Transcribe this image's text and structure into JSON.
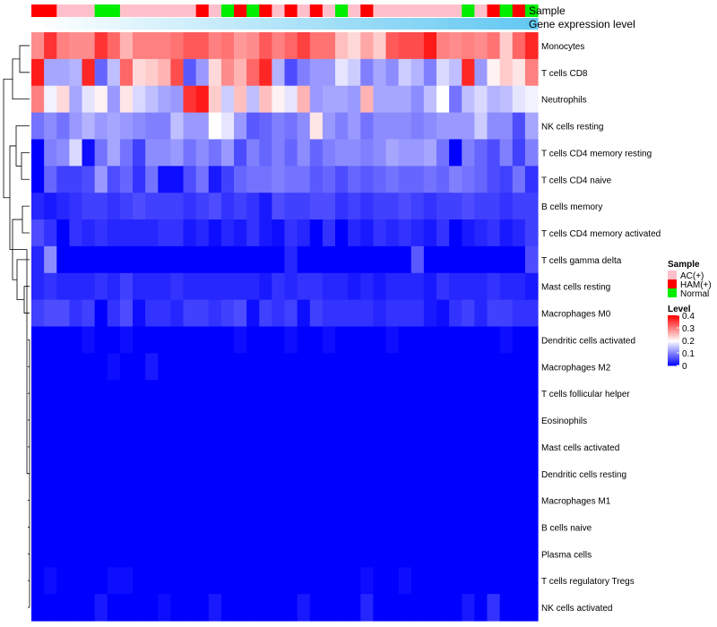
{
  "chart_data": {
    "type": "heatmap",
    "title": "",
    "annotation_rows": [
      "Sample",
      "Gene expression level"
    ],
    "rows": [
      "Monocytes",
      "T cells CD8",
      "Neutrophils",
      "NK cells resting",
      "T cells CD4 memory resting",
      "T cells CD4 naive",
      "B cells memory",
      "T cells CD4 memory activated",
      "T cells gamma delta",
      "Mast cells resting",
      "Macrophages M0",
      "Dendritic cells activated",
      "Macrophages M2",
      "T cells follicular helper",
      "Eosinophils",
      "Mast cells activated",
      "Dendritic cells resting",
      "Macrophages M1",
      "B cells naive",
      "Plasma cells",
      "T cells regulatory  Tregs",
      "NK cells activated"
    ],
    "sample_groups": [
      "HAM(+)",
      "HAM(+)",
      "AC(+)",
      "AC(+)",
      "AC(+)",
      "Normal",
      "Normal",
      "AC(+)",
      "AC(+)",
      "AC(+)",
      "AC(+)",
      "AC(+)",
      "AC(+)",
      "HAM(+)",
      "AC(+)",
      "Normal",
      "HAM(+)",
      "Normal",
      "HAM(+)",
      "AC(+)",
      "HAM(+)",
      "AC(+)",
      "HAM(+)",
      "AC(+)",
      "Normal",
      "AC(+)",
      "HAM(+)",
      "AC(+)",
      "AC(+)",
      "AC(+)",
      "AC(+)",
      "AC(+)",
      "AC(+)",
      "AC(+)",
      "Normal",
      "AC(+)",
      "HAM(+)",
      "Normal",
      "HAM(+)",
      "Normal"
    ],
    "gene_expression_level": [
      0.0,
      0.03,
      0.05,
      0.08,
      0.1,
      0.13,
      0.15,
      0.18,
      0.21,
      0.23,
      0.26,
      0.28,
      0.31,
      0.33,
      0.36,
      0.38,
      0.41,
      0.44,
      0.46,
      0.49,
      0.51,
      0.54,
      0.56,
      0.59,
      0.62,
      0.64,
      0.67,
      0.69,
      0.72,
      0.74,
      0.77,
      0.79,
      0.82,
      0.85,
      0.87,
      0.9,
      0.92,
      0.95,
      0.97,
      1.0
    ],
    "values": [
      [
        0.29,
        0.36,
        0.3,
        0.29,
        0.29,
        0.36,
        0.32,
        0.26,
        0.3,
        0.3,
        0.3,
        0.31,
        0.33,
        0.33,
        0.3,
        0.31,
        0.28,
        0.29,
        0.33,
        0.3,
        0.32,
        0.35,
        0.31,
        0.31,
        0.25,
        0.23,
        0.27,
        0.24,
        0.33,
        0.34,
        0.34,
        0.38,
        0.3,
        0.29,
        0.3,
        0.29,
        0.31,
        0.24,
        0.32,
        0.37
      ],
      [
        0.38,
        0.13,
        0.13,
        0.14,
        0.37,
        0.08,
        0.15,
        0.32,
        0.23,
        0.24,
        0.26,
        0.34,
        0.07,
        0.12,
        0.23,
        0.29,
        0.26,
        0.32,
        0.37,
        0.14,
        0.06,
        0.1,
        0.12,
        0.12,
        0.18,
        0.16,
        0.1,
        0.13,
        0.11,
        0.16,
        0.14,
        0.1,
        0.17,
        0.15,
        0.37,
        0.12,
        0.21,
        0.24,
        0.22,
        0.3
      ],
      [
        0.3,
        0.19,
        0.23,
        0.13,
        0.18,
        0.21,
        0.12,
        0.22,
        0.17,
        0.15,
        0.13,
        0.12,
        0.36,
        0.38,
        0.24,
        0.16,
        0.25,
        0.15,
        0.25,
        0.21,
        0.18,
        0.26,
        0.12,
        0.13,
        0.13,
        0.12,
        0.26,
        0.13,
        0.13,
        0.13,
        0.11,
        0.15,
        0.2,
        0.09,
        0.15,
        0.17,
        0.14,
        0.15,
        0.18,
        0.19
      ],
      [
        0.09,
        0.11,
        0.09,
        0.12,
        0.14,
        0.12,
        0.13,
        0.12,
        0.11,
        0.1,
        0.1,
        0.15,
        0.12,
        0.12,
        0.2,
        0.18,
        0.12,
        0.07,
        0.08,
        0.1,
        0.09,
        0.11,
        0.22,
        0.12,
        0.1,
        0.12,
        0.09,
        0.11,
        0.11,
        0.11,
        0.1,
        0.11,
        0.12,
        0.12,
        0.12,
        0.16,
        0.11,
        0.11,
        0.06,
        0.13
      ],
      [
        0.0,
        0.1,
        0.11,
        0.17,
        0.01,
        0.09,
        0.13,
        0.09,
        0.05,
        0.11,
        0.11,
        0.12,
        0.09,
        0.11,
        0.09,
        0.12,
        0.06,
        0.1,
        0.08,
        0.1,
        0.08,
        0.11,
        0.08,
        0.1,
        0.11,
        0.11,
        0.1,
        0.11,
        0.13,
        0.12,
        0.12,
        0.13,
        0.09,
        0.0,
        0.1,
        0.08,
        0.06,
        0.1,
        0.05,
        0.1
      ],
      [
        0.0,
        0.08,
        0.05,
        0.05,
        0.06,
        0.12,
        0.06,
        0.08,
        0.04,
        0.09,
        0.01,
        0.01,
        0.06,
        0.09,
        0.02,
        0.05,
        0.08,
        0.09,
        0.09,
        0.1,
        0.09,
        0.09,
        0.07,
        0.08,
        0.06,
        0.08,
        0.07,
        0.08,
        0.09,
        0.08,
        0.08,
        0.09,
        0.08,
        0.1,
        0.09,
        0.08,
        0.06,
        0.05,
        0.09,
        0.04
      ],
      [
        0.03,
        0.02,
        0.03,
        0.04,
        0.05,
        0.05,
        0.04,
        0.05,
        0.06,
        0.05,
        0.05,
        0.05,
        0.04,
        0.05,
        0.06,
        0.04,
        0.05,
        0.04,
        0.02,
        0.06,
        0.05,
        0.05,
        0.06,
        0.06,
        0.04,
        0.05,
        0.04,
        0.05,
        0.05,
        0.06,
        0.05,
        0.04,
        0.05,
        0.05,
        0.06,
        0.05,
        0.05,
        0.04,
        0.05,
        0.05
      ],
      [
        0.06,
        0.04,
        0.0,
        0.04,
        0.03,
        0.04,
        0.03,
        0.03,
        0.03,
        0.03,
        0.04,
        0.04,
        0.02,
        0.03,
        0.01,
        0.03,
        0.02,
        0.04,
        0.02,
        0.01,
        0.04,
        0.03,
        0.0,
        0.04,
        0.0,
        0.03,
        0.02,
        0.04,
        0.03,
        0.04,
        0.03,
        0.02,
        0.04,
        0.0,
        0.02,
        0.03,
        0.04,
        0.02,
        0.03,
        0.05
      ],
      [
        0.03,
        0.11,
        0.0,
        0.0,
        0.0,
        0.0,
        0.0,
        0.0,
        0.0,
        0.0,
        0.0,
        0.0,
        0.0,
        0.0,
        0.0,
        0.0,
        0.0,
        0.0,
        0.0,
        0.0,
        0.03,
        0.0,
        0.0,
        0.0,
        0.0,
        0.0,
        0.0,
        0.0,
        0.0,
        0.0,
        0.07,
        0.0,
        0.0,
        0.0,
        0.0,
        0.0,
        0.0,
        0.0,
        0.0,
        0.06
      ],
      [
        0.03,
        0.04,
        0.03,
        0.03,
        0.03,
        0.04,
        0.03,
        0.05,
        0.03,
        0.03,
        0.03,
        0.04,
        0.03,
        0.03,
        0.03,
        0.03,
        0.03,
        0.03,
        0.02,
        0.04,
        0.03,
        0.04,
        0.04,
        0.03,
        0.03,
        0.02,
        0.03,
        0.02,
        0.03,
        0.03,
        0.03,
        0.02,
        0.04,
        0.03,
        0.03,
        0.03,
        0.04,
        0.03,
        0.03,
        0.02
      ],
      [
        0.05,
        0.06,
        0.06,
        0.04,
        0.05,
        0.0,
        0.04,
        0.06,
        0.01,
        0.04,
        0.04,
        0.03,
        0.05,
        0.05,
        0.04,
        0.05,
        0.06,
        0.01,
        0.05,
        0.04,
        0.05,
        0.01,
        0.05,
        0.04,
        0.04,
        0.04,
        0.04,
        0.03,
        0.04,
        0.04,
        0.04,
        0.02,
        0.01,
        0.04,
        0.05,
        0.03,
        0.05,
        0.05,
        0.04,
        0.04
      ],
      [
        0.0,
        0.0,
        0.0,
        0.0,
        0.01,
        0.0,
        0.0,
        0.01,
        0.0,
        0.0,
        0.0,
        0.0,
        0.0,
        0.0,
        0.0,
        0.0,
        0.01,
        0.0,
        0.0,
        0.0,
        0.01,
        0.0,
        0.0,
        0.01,
        0.0,
        0.0,
        0.0,
        0.0,
        0.01,
        0.0,
        0.0,
        0.0,
        0.0,
        0.0,
        0.0,
        0.0,
        0.0,
        0.01,
        0.0,
        0.0
      ],
      [
        0.0,
        0.0,
        0.0,
        0.0,
        0.0,
        0.0,
        0.01,
        0.0,
        0.0,
        0.02,
        0.0,
        0.0,
        0.0,
        0.0,
        0.0,
        0.0,
        0.0,
        0.0,
        0.0,
        0.0,
        0.0,
        0.0,
        0.0,
        0.0,
        0.0,
        0.0,
        0.0,
        0.0,
        0.0,
        0.0,
        0.0,
        0.0,
        0.0,
        0.0,
        0.0,
        0.0,
        0.0,
        0.0,
        0.0,
        0.0
      ],
      [
        0.0,
        0.0,
        0.0,
        0.0,
        0.0,
        0.0,
        0.0,
        0.0,
        0.0,
        0.0,
        0.0,
        0.0,
        0.0,
        0.0,
        0.0,
        0.0,
        0.0,
        0.0,
        0.0,
        0.0,
        0.0,
        0.0,
        0.0,
        0.0,
        0.0,
        0.0,
        0.0,
        0.0,
        0.0,
        0.0,
        0.0,
        0.0,
        0.0,
        0.0,
        0.0,
        0.0,
        0.0,
        0.0,
        0.0,
        0.0
      ],
      [
        0.0,
        0.0,
        0.0,
        0.0,
        0.0,
        0.0,
        0.0,
        0.0,
        0.0,
        0.0,
        0.0,
        0.0,
        0.0,
        0.0,
        0.0,
        0.0,
        0.0,
        0.0,
        0.0,
        0.0,
        0.0,
        0.0,
        0.0,
        0.0,
        0.0,
        0.0,
        0.0,
        0.0,
        0.0,
        0.0,
        0.0,
        0.0,
        0.0,
        0.0,
        0.0,
        0.0,
        0.0,
        0.0,
        0.0,
        0.0
      ],
      [
        0.0,
        0.0,
        0.0,
        0.0,
        0.0,
        0.0,
        0.0,
        0.0,
        0.0,
        0.0,
        0.0,
        0.0,
        0.0,
        0.0,
        0.0,
        0.0,
        0.0,
        0.0,
        0.0,
        0.0,
        0.0,
        0.0,
        0.0,
        0.0,
        0.0,
        0.0,
        0.0,
        0.0,
        0.0,
        0.0,
        0.0,
        0.0,
        0.0,
        0.0,
        0.0,
        0.0,
        0.0,
        0.0,
        0.0,
        0.0
      ],
      [
        0.0,
        0.0,
        0.0,
        0.0,
        0.0,
        0.0,
        0.0,
        0.0,
        0.0,
        0.0,
        0.0,
        0.0,
        0.0,
        0.0,
        0.0,
        0.0,
        0.0,
        0.0,
        0.0,
        0.0,
        0.0,
        0.0,
        0.0,
        0.0,
        0.0,
        0.0,
        0.0,
        0.0,
        0.0,
        0.0,
        0.0,
        0.0,
        0.0,
        0.0,
        0.0,
        0.0,
        0.0,
        0.0,
        0.0,
        0.0
      ],
      [
        0.0,
        0.0,
        0.0,
        0.0,
        0.0,
        0.0,
        0.0,
        0.0,
        0.0,
        0.0,
        0.0,
        0.0,
        0.0,
        0.0,
        0.0,
        0.0,
        0.0,
        0.0,
        0.0,
        0.0,
        0.0,
        0.0,
        0.0,
        0.0,
        0.0,
        0.0,
        0.0,
        0.0,
        0.0,
        0.0,
        0.0,
        0.0,
        0.0,
        0.0,
        0.0,
        0.0,
        0.0,
        0.0,
        0.0,
        0.0
      ],
      [
        0.0,
        0.0,
        0.0,
        0.0,
        0.0,
        0.0,
        0.0,
        0.0,
        0.0,
        0.0,
        0.0,
        0.0,
        0.0,
        0.0,
        0.0,
        0.0,
        0.0,
        0.0,
        0.0,
        0.0,
        0.0,
        0.0,
        0.0,
        0.0,
        0.0,
        0.0,
        0.0,
        0.0,
        0.0,
        0.0,
        0.0,
        0.0,
        0.0,
        0.0,
        0.0,
        0.0,
        0.0,
        0.0,
        0.0,
        0.0
      ],
      [
        0.0,
        0.0,
        0.0,
        0.0,
        0.0,
        0.0,
        0.0,
        0.0,
        0.0,
        0.0,
        0.0,
        0.0,
        0.0,
        0.0,
        0.0,
        0.0,
        0.0,
        0.0,
        0.0,
        0.0,
        0.0,
        0.0,
        0.0,
        0.0,
        0.0,
        0.0,
        0.0,
        0.0,
        0.0,
        0.0,
        0.0,
        0.0,
        0.0,
        0.0,
        0.0,
        0.0,
        0.0,
        0.0,
        0.0,
        0.0
      ],
      [
        0.0,
        0.01,
        0.0,
        0.0,
        0.0,
        0.0,
        0.01,
        0.01,
        0.0,
        0.0,
        0.0,
        0.0,
        0.0,
        0.0,
        0.0,
        0.0,
        0.0,
        0.0,
        0.0,
        0.0,
        0.0,
        0.0,
        0.0,
        0.0,
        0.0,
        0.0,
        0.01,
        0.0,
        0.0,
        0.01,
        0.0,
        0.0,
        0.0,
        0.0,
        0.0,
        0.0,
        0.0,
        0.0,
        0.0,
        0.0
      ],
      [
        0.0,
        0.0,
        0.0,
        0.0,
        0.0,
        0.02,
        0.0,
        0.0,
        0.0,
        0.0,
        0.01,
        0.0,
        0.0,
        0.0,
        0.02,
        0.0,
        0.0,
        0.0,
        0.0,
        0.0,
        0.0,
        0.02,
        0.0,
        0.0,
        0.0,
        0.0,
        0.03,
        0.0,
        0.0,
        0.0,
        0.0,
        0.0,
        0.0,
        0.0,
        0.02,
        0.0,
        0.04,
        0.0,
        0.0,
        0.0
      ]
    ],
    "legend": {
      "sample_title": "Sample",
      "sample_entries": [
        {
          "label": "AC(+)",
          "color": "#ffc0cb"
        },
        {
          "label": "HAM(+)",
          "color": "#ff0000"
        },
        {
          "label": "Normal",
          "color": "#00ee00"
        }
      ],
      "level_title": "Level",
      "level_ticks": [
        0.4,
        0.3,
        0.2,
        0.1,
        0
      ],
      "level_tick_labels": [
        "0.4",
        "0.3",
        "0.2",
        "0.1",
        "0"
      ],
      "level_range": [
        0,
        0.4
      ]
    },
    "colors": {
      "low": "#0000ff",
      "mid": "#ffffff",
      "high": "#ff0000",
      "expression_low": "#ffffff",
      "expression_high": "#63c8f2"
    }
  }
}
